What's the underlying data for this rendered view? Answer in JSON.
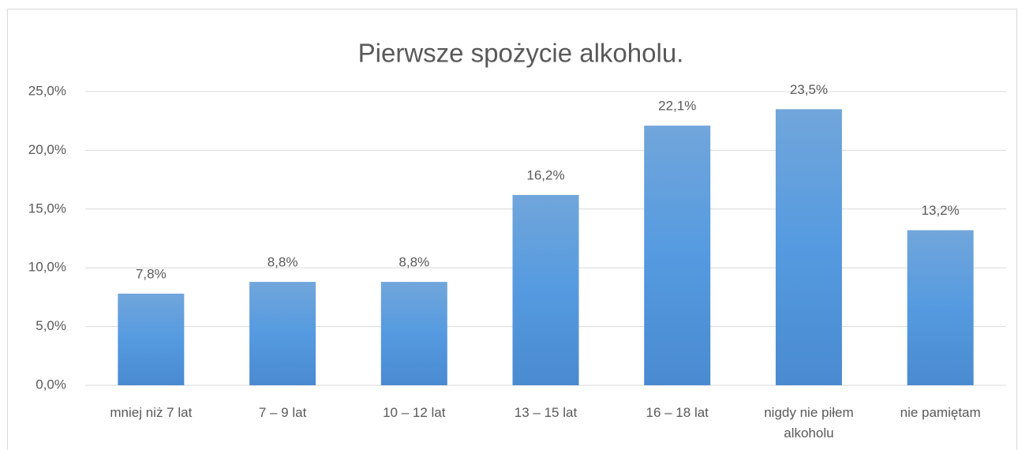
{
  "chart_data": {
    "type": "bar",
    "title": "Pierwsze spożycie alkoholu.",
    "categories": [
      "mniej niż 7 lat",
      "7 – 9 lat",
      "10 – 12 lat",
      "13 – 15 lat",
      "16 – 18 lat",
      "nigdy nie piłem alkoholu",
      "nie pamiętam"
    ],
    "values": [
      7.8,
      8.8,
      8.8,
      16.2,
      22.1,
      23.5,
      13.2
    ],
    "value_labels": [
      "7,8%",
      "8,8%",
      "8,8%",
      "16,2%",
      "22,1%",
      "23,5%",
      "13,2%"
    ],
    "color": "#5b9bd5",
    "ylim": [
      0,
      25
    ],
    "yticks": [
      {
        "value": 0,
        "label": "0,0%"
      },
      {
        "value": 5,
        "label": "5,0%"
      },
      {
        "value": 10,
        "label": "10,0%"
      },
      {
        "value": 15,
        "label": "15,0%"
      },
      {
        "value": 20,
        "label": "20,0%"
      },
      {
        "value": 25,
        "label": "25,0%"
      }
    ],
    "grid": true
  }
}
